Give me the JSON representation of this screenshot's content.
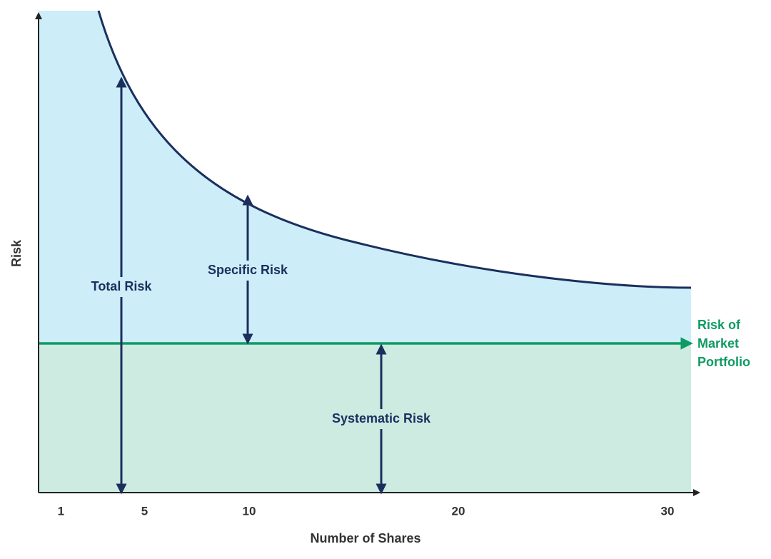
{
  "axes": {
    "x_label": "Number of Shares",
    "y_label": "Risk",
    "x_ticks": [
      1,
      5,
      10,
      20,
      30
    ]
  },
  "labels": {
    "total_risk": "Total Risk",
    "specific_risk": "Specific Risk",
    "systematic_risk": "Systematic Risk",
    "market_line": [
      "Risk of",
      "Market",
      "Portfolio"
    ]
  }
}
